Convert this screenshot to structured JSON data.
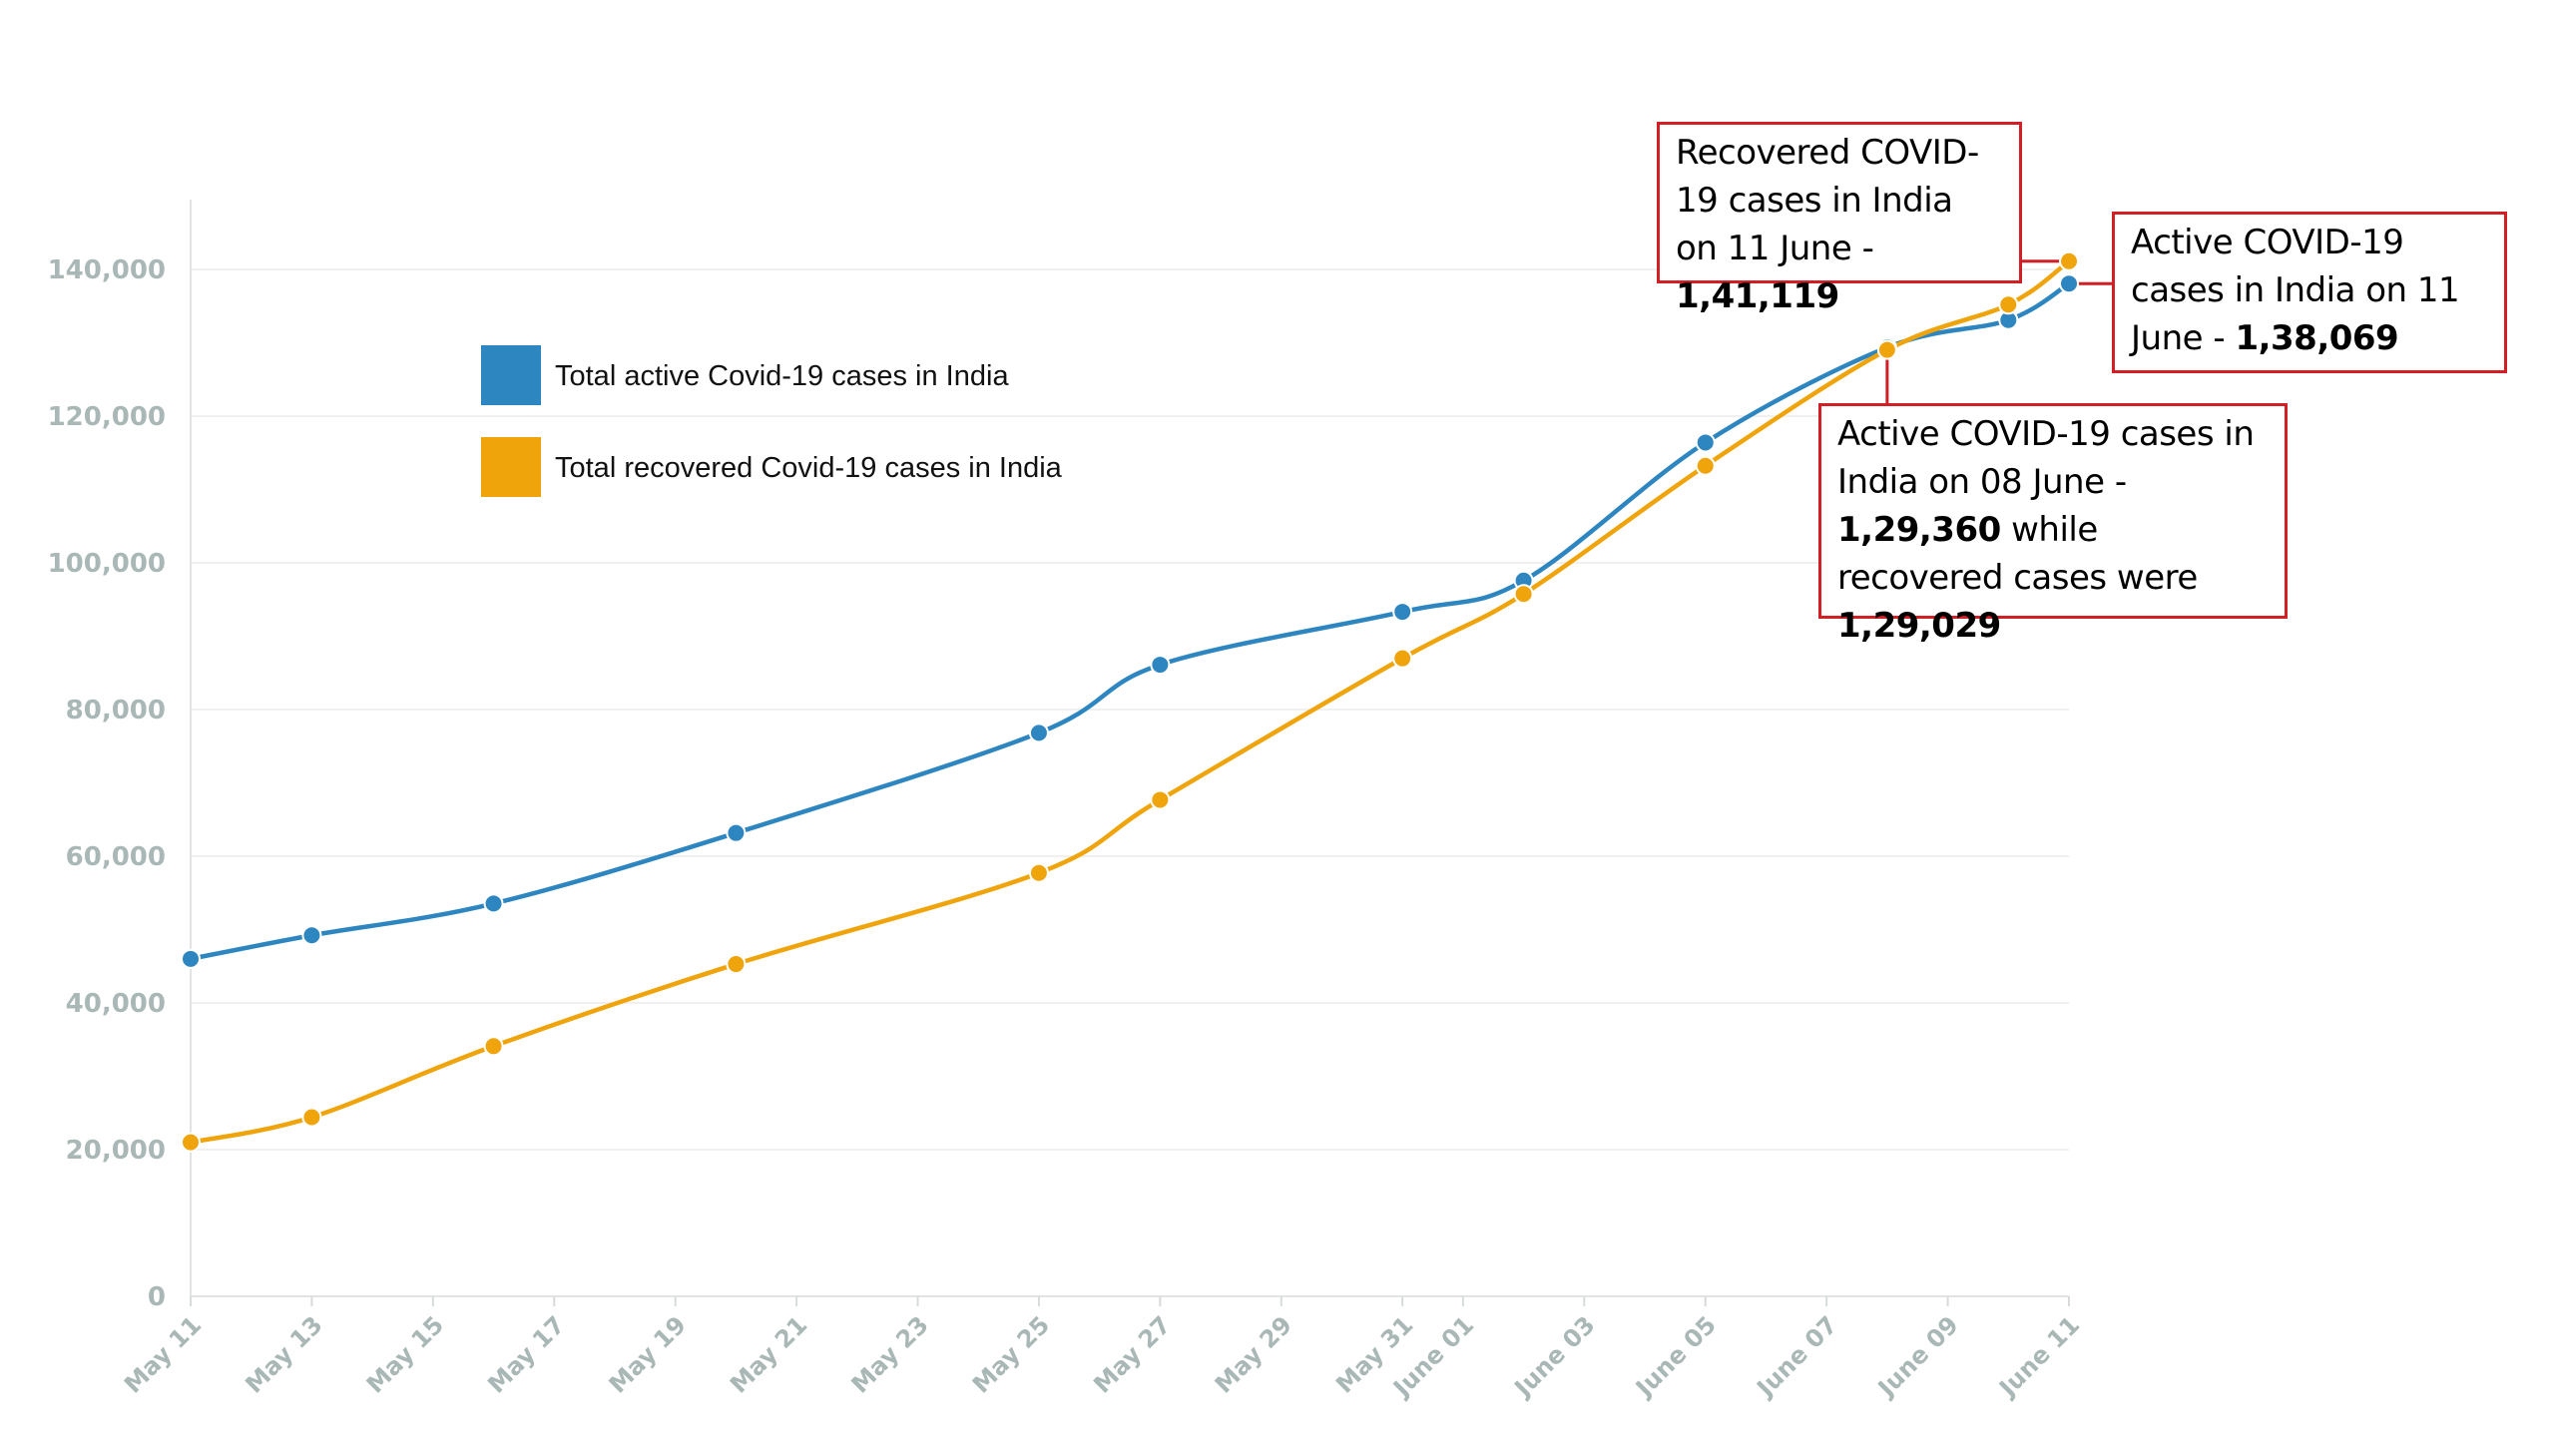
{
  "chart_data": {
    "type": "line",
    "x": [
      "May 11",
      "May 13",
      "May 16",
      "May 20",
      "May 25",
      "May 27",
      "May 31",
      "June 02",
      "June 05",
      "June 08",
      "June 10",
      "June 11"
    ],
    "xticks": [
      "May 11",
      "May 13",
      "May 15",
      "May 17",
      "May 19",
      "May 21",
      "May 23",
      "May 25",
      "May 27",
      "May 29",
      "May 31",
      "June 01",
      "June 03",
      "June 05",
      "June 07",
      "June 09",
      "June 11"
    ],
    "yticks": [
      "0",
      "20,000",
      "40,000",
      "60,000",
      "80,000",
      "100,000",
      "120,000",
      "140,000"
    ],
    "ylim": [
      0,
      150000
    ],
    "grid": true,
    "legend_position": "top-left",
    "series": [
      {
        "name": "Total active Covid-19 cases in India",
        "color": "#2e86c1",
        "values": [
          46008,
          49219,
          53553,
          63172,
          76820,
          86110,
          93322,
          97581,
          116400,
          129360,
          133100,
          138069
        ]
      },
      {
        "name": "Total recovered Covid-19 cases in India",
        "color": "#f0a40c",
        "values": [
          21000,
          24420,
          34109,
          45300,
          57721,
          67692,
          86984,
          95754,
          113233,
          129029,
          135200,
          141119
        ]
      }
    ],
    "annotations": [
      {
        "id": "recovered",
        "lead": "Recovered COVID-19 cases in India on 11 June - ",
        "value": "1,41,119"
      },
      {
        "id": "active",
        "lead": "Active COVID-19 cases in India on 11 June - ",
        "value": "1,38,069"
      },
      {
        "id": "june8",
        "lead": "Active  COVID-19 cases in India on 08 June - ",
        "value": "1,29,360",
        "mid": " while recovered cases were ",
        "value2": "1,29,029"
      }
    ]
  }
}
